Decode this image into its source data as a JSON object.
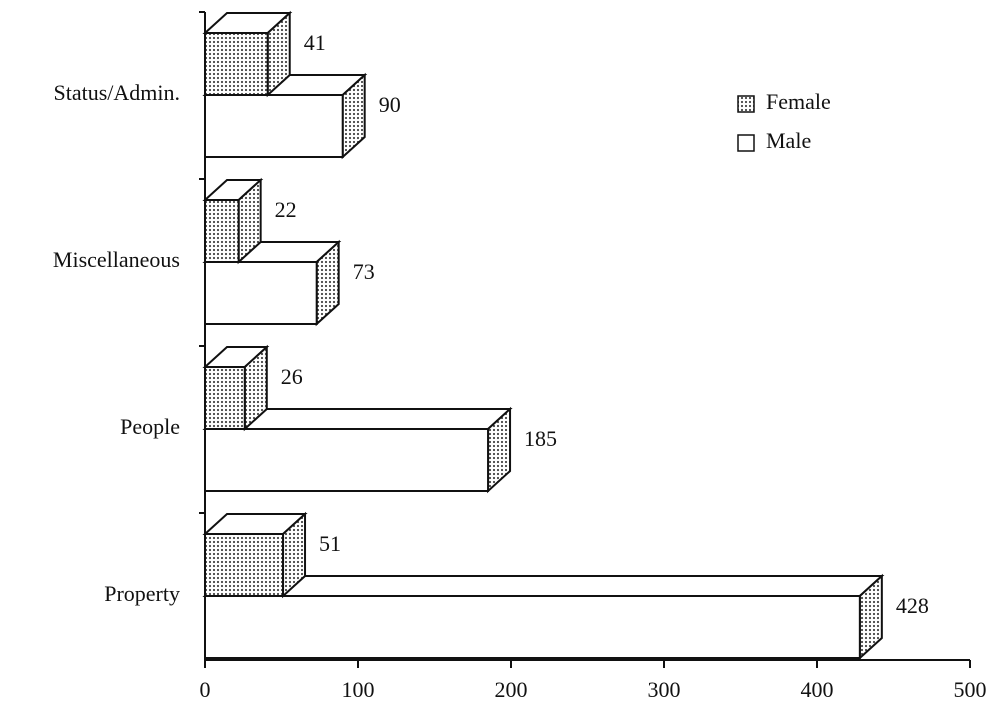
{
  "chart_data": {
    "type": "bar3d",
    "orientation": "horizontal",
    "categories": [
      "Status/Admin.",
      "Miscellaneous",
      "People",
      "Property"
    ],
    "series": [
      {
        "name": "Female",
        "color": "#444444",
        "values": [
          41,
          22,
          26,
          51
        ]
      },
      {
        "name": "Male",
        "color": "#ffffff",
        "values": [
          90,
          73,
          185,
          428
        ]
      }
    ],
    "xlim": [
      0,
      500
    ],
    "xticks": [
      0,
      100,
      200,
      300,
      400,
      500
    ],
    "grid": false,
    "legend": "upper right"
  }
}
